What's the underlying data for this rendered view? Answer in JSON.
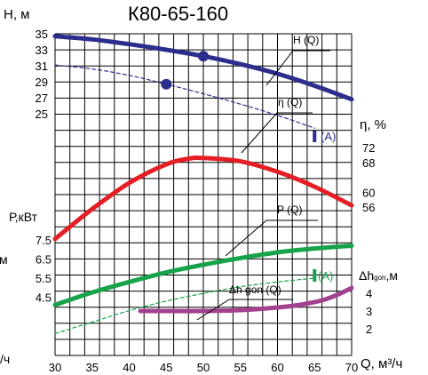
{
  "chart_data": {
    "type": "line",
    "title": "К80-65-160",
    "xlabel": "Q, м³/ч",
    "xlim": [
      30,
      70
    ],
    "x_ticks": [
      30,
      35,
      40,
      45,
      50,
      55,
      60,
      65,
      70
    ],
    "axes": {
      "head": {
        "label": "Н, м",
        "ticks": [
          35,
          33,
          31,
          29,
          27,
          25
        ]
      },
      "efficiency": {
        "label": "η, %",
        "ticks": [
          72,
          68,
          60,
          56
        ]
      },
      "power": {
        "label": "Р,кВт",
        "ticks": [
          7.5,
          6.5,
          5.5,
          4.5
        ]
      },
      "npsh": {
        "label": "Δh",
        "subscript": "gon",
        "unit": ",м",
        "ticks": [
          4,
          3,
          2
        ]
      }
    },
    "cut_labels": {
      "left_power_unit": "м",
      "left_bottom_unit": "/ч"
    },
    "annotations": {
      "range_marker": "(A)"
    },
    "series": [
      {
        "name": "H (Q)",
        "axis": "head",
        "color": "#2b2e8c",
        "style": "solid",
        "x": [
          30,
          35,
          40,
          45,
          50,
          55,
          60,
          65,
          70
        ],
        "y": [
          34.7,
          34.3,
          33.7,
          33.0,
          32.2,
          31.2,
          30.0,
          28.5,
          26.8
        ],
        "markers": [
          {
            "x": 50,
            "y": 32.2
          }
        ]
      },
      {
        "name": "",
        "axis": "head",
        "color": "#2b2e8c",
        "style": "dashed",
        "x": [
          30,
          35,
          40,
          45,
          50,
          55,
          60,
          65
        ],
        "y": [
          31.1,
          30.6,
          29.8,
          28.7,
          27.5,
          26.2,
          24.8,
          23.2
        ],
        "markers": [
          {
            "x": 45,
            "y": 28.7
          }
        ]
      },
      {
        "name": "η (Q)",
        "axis": "efficiency",
        "color": "#e31e24",
        "style": "solid",
        "x": [
          30,
          35,
          40,
          45,
          48,
          50,
          55,
          60,
          65,
          70
        ],
        "y": [
          47.5,
          55.5,
          62.5,
          67.5,
          69,
          69.2,
          68.3,
          65.5,
          61.5,
          56.5
        ]
      },
      {
        "name": "P (Q)",
        "axis": "power",
        "color": "#16a34a",
        "style": "solid",
        "x": [
          30,
          35,
          40,
          45,
          50,
          55,
          60,
          65,
          70
        ],
        "y": [
          4.1,
          4.75,
          5.3,
          5.8,
          6.2,
          6.55,
          6.85,
          7.05,
          7.2
        ]
      },
      {
        "name": "",
        "axis": "power",
        "color": "#16a34a",
        "style": "dashed",
        "x": [
          30,
          35,
          40,
          45,
          50,
          55,
          60,
          65
        ],
        "y": [
          2.6,
          3.2,
          3.8,
          4.3,
          4.7,
          5.05,
          5.3,
          5.5
        ]
      },
      {
        "name": "Δh gon (Q)",
        "axis": "npsh",
        "color": "#a3418f",
        "style": "solid",
        "x": [
          41.5,
          45,
          50,
          55,
          60,
          63,
          66,
          68,
          70
        ],
        "y": [
          3.0,
          3.0,
          3.0,
          3.05,
          3.2,
          3.35,
          3.6,
          3.9,
          4.3
        ]
      }
    ]
  }
}
